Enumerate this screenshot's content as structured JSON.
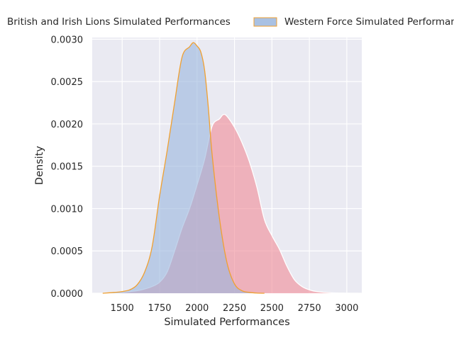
{
  "chart_data": {
    "type": "area",
    "xlabel": "Simulated Performances",
    "ylabel": "Density",
    "xlim": [
      1300,
      3100
    ],
    "ylim": [
      0,
      0.00302
    ],
    "grid": true,
    "legend": "top-center, outside",
    "x_ticks": [
      {
        "value": 1500,
        "label": "1500"
      },
      {
        "value": 1750,
        "label": "1750"
      },
      {
        "value": 2000,
        "label": "2000"
      },
      {
        "value": 2250,
        "label": "2250"
      },
      {
        "value": 2500,
        "label": "2500"
      },
      {
        "value": 2750,
        "label": "2750"
      },
      {
        "value": 3000,
        "label": "3000"
      }
    ],
    "y_ticks": [
      {
        "value": 0.0,
        "label": "0.0000"
      },
      {
        "value": 0.0005,
        "label": "0.0005"
      },
      {
        "value": 0.001,
        "label": "0.0010"
      },
      {
        "value": 0.0015,
        "label": "0.0015"
      },
      {
        "value": 0.002,
        "label": "0.0020"
      },
      {
        "value": 0.0025,
        "label": "0.0025"
      },
      {
        "value": 0.003,
        "label": "0.0030"
      }
    ],
    "series": [
      {
        "name": "British and Irish Lions Simulated Performances",
        "fill": "#f08a96",
        "stroke": "#ffffff",
        "x": [
          1390,
          1500,
          1550,
          1600,
          1650,
          1700,
          1750,
          1800,
          1850,
          1900,
          1950,
          2000,
          2050,
          2100,
          2150,
          2175,
          2200,
          2250,
          2300,
          2350,
          2400,
          2450,
          2500,
          2550,
          2600,
          2650,
          2700,
          2750,
          2800,
          2900,
          3000,
          3080
        ],
        "y": [
          0,
          1e-05,
          2e-05,
          3e-05,
          5e-05,
          8e-05,
          0.00013,
          0.00025,
          0.0005,
          0.00077,
          0.001,
          0.00128,
          0.00158,
          0.00197,
          0.00206,
          0.00211,
          0.00209,
          0.00196,
          0.00178,
          0.00155,
          0.00125,
          0.00087,
          0.00068,
          0.00052,
          0.00032,
          0.00016,
          8e-05,
          4e-05,
          2e-05,
          5e-06,
          1e-06,
          0
        ]
      },
      {
        "name": "Western Force Simulated Performances",
        "fill": "#9ab6de",
        "stroke": "#f0a030",
        "x": [
          1370,
          1450,
          1500,
          1550,
          1600,
          1650,
          1700,
          1750,
          1800,
          1850,
          1900,
          1950,
          1975,
          2000,
          2025,
          2050,
          2075,
          2100,
          2150,
          2200,
          2250,
          2300,
          2350,
          2400,
          2450
        ],
        "y": [
          0,
          1e-05,
          2e-05,
          4e-05,
          0.0001,
          0.00025,
          0.00055,
          0.00115,
          0.00168,
          0.00225,
          0.00279,
          0.00291,
          0.00296,
          0.00292,
          0.00285,
          0.00264,
          0.0022,
          0.00165,
          0.00088,
          0.00036,
          0.00011,
          3e-05,
          1e-05,
          2e-06,
          0
        ]
      }
    ]
  }
}
